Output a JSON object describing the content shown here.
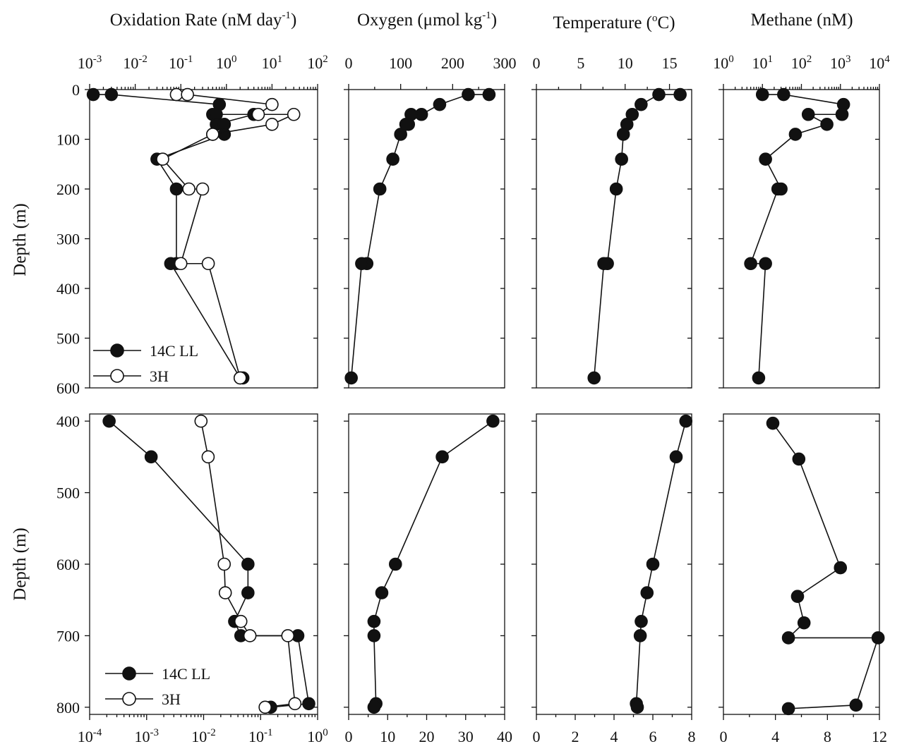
{
  "figure": {
    "column_titles": [
      {
        "pre": "Oxidation Rate (nM day",
        "sup": "-1",
        "post": ")"
      },
      {
        "pre": "Oxygen (μmol kg",
        "sup": "-1",
        "post": ")"
      },
      {
        "pre": "Temperature (",
        "sup": "o",
        "post": "C)"
      },
      {
        "pre": "Methane (nM)",
        "sup": "",
        "post": ""
      }
    ],
    "ylabel": "Depth (m)",
    "colors": {
      "axis": "#111111",
      "filled": "#111111",
      "open": "#ffffff"
    }
  },
  "chart_data": [
    {
      "id": "top-oxidation",
      "type": "line",
      "xscale": "log",
      "xlim": [
        0.001,
        100
      ],
      "ylim": [
        600,
        0
      ],
      "yreversed": true,
      "x_ticks": [
        {
          "base": "10",
          "exp": "-3"
        },
        {
          "base": "10",
          "exp": "-2"
        },
        {
          "base": "10",
          "exp": "-1"
        },
        {
          "base": "10",
          "exp": "0"
        },
        {
          "base": "10",
          "exp": "1"
        },
        {
          "base": "10",
          "exp": "2"
        }
      ],
      "y_ticks": [
        "0",
        "100",
        "200",
        "300",
        "400",
        "500",
        "600"
      ],
      "legend": {
        "position": "bottom-left",
        "entries": [
          "14C LL",
          "3H"
        ]
      },
      "series": [
        {
          "name": "14C LL",
          "marker": "filled",
          "points": [
            [
              0.0012,
              10
            ],
            [
              0.003,
              10
            ],
            [
              0.7,
              30
            ],
            [
              0.5,
              50
            ],
            [
              0.6,
              50
            ],
            [
              4,
              50
            ],
            [
              0.6,
              70
            ],
            [
              0.9,
              70
            ],
            [
              0.5,
              90
            ],
            [
              0.9,
              90
            ],
            [
              0.03,
              140
            ],
            [
              0.08,
              200
            ],
            [
              0.08,
              350
            ],
            [
              0.06,
              350
            ],
            [
              2,
              580
            ],
            [
              2.3,
              580
            ]
          ]
        },
        {
          "name": "3H",
          "marker": "open",
          "points": [
            [
              0.08,
              10
            ],
            [
              0.14,
              10
            ],
            [
              10,
              30
            ],
            [
              5,
              50
            ],
            [
              30,
              50
            ],
            [
              10,
              70
            ],
            [
              0.5,
              90
            ],
            [
              0.04,
              140
            ],
            [
              0.15,
              200
            ],
            [
              0.3,
              200
            ],
            [
              0.1,
              350
            ],
            [
              0.4,
              350
            ],
            [
              2,
              580
            ]
          ]
        }
      ]
    },
    {
      "id": "top-oxygen",
      "type": "line",
      "xlim": [
        0,
        300
      ],
      "ylim": [
        600,
        0
      ],
      "yreversed": true,
      "x_ticks": [
        "0",
        "100",
        "200",
        "300"
      ],
      "series": [
        {
          "name": "",
          "marker": "filled",
          "points": [
            [
              270,
              10
            ],
            [
              230,
              10
            ],
            [
              175,
              30
            ],
            [
              140,
              50
            ],
            [
              120,
              50
            ],
            [
              115,
              70
            ],
            [
              110,
              70
            ],
            [
              100,
              90
            ],
            [
              85,
              140
            ],
            [
              60,
              200
            ],
            [
              35,
              350
            ],
            [
              25,
              350
            ],
            [
              5,
              580
            ]
          ]
        }
      ]
    },
    {
      "id": "top-temperature",
      "type": "line",
      "xlim": [
        0,
        17.5
      ],
      "ylim": [
        600,
        0
      ],
      "yreversed": true,
      "x_ticks": [
        "0",
        "5",
        "10",
        "15"
      ],
      "series": [
        {
          "name": "",
          "marker": "filled",
          "points": [
            [
              16.2,
              10
            ],
            [
              13.8,
              10
            ],
            [
              11.8,
              30
            ],
            [
              10.8,
              50
            ],
            [
              10.2,
              70
            ],
            [
              9.8,
              90
            ],
            [
              9.6,
              140
            ],
            [
              9,
              200
            ],
            [
              8,
              350
            ],
            [
              7.6,
              350
            ],
            [
              6.5,
              580
            ]
          ]
        }
      ]
    },
    {
      "id": "top-methane",
      "type": "line",
      "xscale": "log",
      "xlim": [
        1,
        10000
      ],
      "ylim": [
        600,
        0
      ],
      "yreversed": true,
      "x_ticks": [
        {
          "base": "10",
          "exp": "0"
        },
        {
          "base": "10",
          "exp": "1"
        },
        {
          "base": "10",
          "exp": "2"
        },
        {
          "base": "10",
          "exp": "3"
        },
        {
          "base": "10",
          "exp": "4"
        }
      ],
      "series": [
        {
          "name": "",
          "marker": "filled",
          "points": [
            [
              10,
              10
            ],
            [
              35,
              10
            ],
            [
              1200,
              30
            ],
            [
              1100,
              50
            ],
            [
              150,
              50
            ],
            [
              450,
              70
            ],
            [
              70,
              90
            ],
            [
              12,
              140
            ],
            [
              30,
              200
            ],
            [
              25,
              200
            ],
            [
              5,
              350
            ],
            [
              12,
              350
            ],
            [
              8,
              580
            ]
          ]
        }
      ]
    },
    {
      "id": "bottom-oxidation",
      "type": "line",
      "xscale": "log",
      "xlim": [
        0.0001,
        1
      ],
      "ylim": [
        810,
        390
      ],
      "yreversed": true,
      "x_ticks": [
        {
          "base": "10",
          "exp": "-4"
        },
        {
          "base": "10",
          "exp": "-3"
        },
        {
          "base": "10",
          "exp": "-2"
        },
        {
          "base": "10",
          "exp": "-1"
        },
        {
          "base": "10",
          "exp": "0"
        }
      ],
      "y_ticks": [
        "400",
        "500",
        "600",
        "700",
        "800"
      ],
      "legend": {
        "position": "bottom-left",
        "entries": [
          "14C LL",
          "3H"
        ]
      },
      "series": [
        {
          "name": "14C LL",
          "marker": "filled",
          "points": [
            [
              0.00022,
              400
            ],
            [
              0.0012,
              450
            ],
            [
              0.06,
              600
            ],
            [
              0.06,
              640
            ],
            [
              0.035,
              680
            ],
            [
              0.045,
              700
            ],
            [
              0.45,
              700
            ],
            [
              0.7,
              795
            ],
            [
              0.15,
              800
            ]
          ]
        },
        {
          "name": "3H",
          "marker": "open",
          "points": [
            [
              0.009,
              400
            ],
            [
              0.012,
              450
            ],
            [
              0.023,
              600
            ],
            [
              0.024,
              640
            ],
            [
              0.045,
              680
            ],
            [
              0.065,
              700
            ],
            [
              0.3,
              700
            ],
            [
              0.4,
              795
            ],
            [
              0.12,
              800
            ]
          ]
        }
      ]
    },
    {
      "id": "bottom-oxygen",
      "type": "line",
      "xlim": [
        0,
        40
      ],
      "ylim": [
        810,
        390
      ],
      "yreversed": true,
      "x_ticks": [
        "0",
        "10",
        "20",
        "30",
        "40"
      ],
      "series": [
        {
          "name": "",
          "marker": "filled",
          "points": [
            [
              37,
              400
            ],
            [
              24,
              450
            ],
            [
              12,
              600
            ],
            [
              8.5,
              640
            ],
            [
              6.5,
              680
            ],
            [
              6.5,
              700
            ],
            [
              7,
              795
            ],
            [
              6.5,
              800
            ]
          ]
        }
      ]
    },
    {
      "id": "bottom-temperature",
      "type": "line",
      "xlim": [
        0,
        8
      ],
      "ylim": [
        810,
        390
      ],
      "yreversed": true,
      "x_ticks": [
        "0",
        "2",
        "4",
        "6",
        "8"
      ],
      "series": [
        {
          "name": "",
          "marker": "filled",
          "points": [
            [
              7.7,
              400
            ],
            [
              7.2,
              450
            ],
            [
              6,
              600
            ],
            [
              5.7,
              640
            ],
            [
              5.4,
              680
            ],
            [
              5.35,
              700
            ],
            [
              5.15,
              795
            ],
            [
              5.2,
              800
            ]
          ]
        }
      ]
    },
    {
      "id": "bottom-methane",
      "type": "line",
      "xlim": [
        0,
        12
      ],
      "ylim": [
        810,
        390
      ],
      "yreversed": true,
      "x_ticks": [
        "0",
        "4",
        "8",
        "12"
      ],
      "series": [
        {
          "name": "",
          "marker": "filled",
          "points": [
            [
              3.8,
              403
            ],
            [
              5.8,
              453
            ],
            [
              9,
              605
            ],
            [
              5.7,
              645
            ],
            [
              6.2,
              682
            ],
            [
              5,
              703
            ],
            [
              11.9,
              703
            ],
            [
              10.2,
              797
            ],
            [
              5,
              802
            ]
          ]
        }
      ]
    }
  ]
}
